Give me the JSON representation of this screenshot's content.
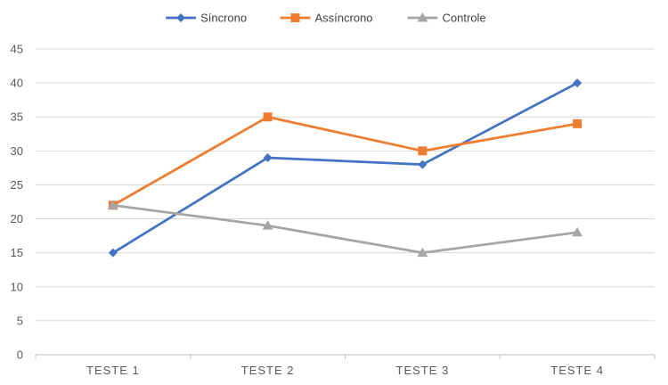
{
  "chart_data": {
    "type": "line",
    "title": "",
    "xlabel": "",
    "ylabel": "",
    "categories": [
      "TESTE 1",
      "TESTE 2",
      "TESTE 3",
      "TESTE 4"
    ],
    "ylim": [
      0,
      45
    ],
    "yticks": [
      0,
      5,
      10,
      15,
      20,
      25,
      30,
      35,
      40,
      45
    ],
    "grid": true,
    "legend_position": "top",
    "series": [
      {
        "name": "Síncrono",
        "values": [
          15,
          29,
          28,
          40
        ],
        "color": "#4472C4",
        "marker": "diamond"
      },
      {
        "name": "Assíncrono",
        "values": [
          22,
          35,
          30,
          34
        ],
        "color": "#ED7D31",
        "marker": "square"
      },
      {
        "name": "Controle",
        "values": [
          22,
          19,
          15,
          18
        ],
        "color": "#A5A5A5",
        "marker": "triangle"
      }
    ]
  },
  "colors": {
    "gridline": "#D9D9D9",
    "axis": "#BFBFBF",
    "text": "#595959"
  }
}
